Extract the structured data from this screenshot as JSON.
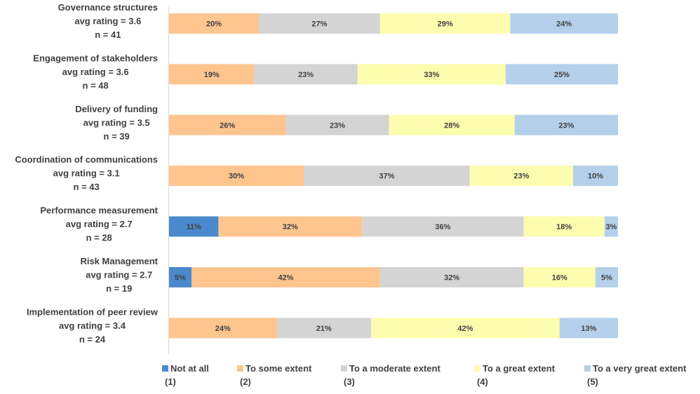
{
  "chart_data": {
    "type": "bar",
    "orientation": "horizontal",
    "stacked": true,
    "title": "",
    "xlabel": "",
    "ylabel": "",
    "xlim": [
      0,
      100
    ],
    "grid": false,
    "legend_position": "bottom",
    "categories": [
      {
        "name": "Governance structures",
        "avg": "avg rating = 3.6",
        "n": "n = 41"
      },
      {
        "name": "Engagement of stakeholders",
        "avg": "avg rating = 3.6",
        "n": "n = 48"
      },
      {
        "name": "Delivery of funding",
        "avg": "avg rating = 3.5",
        "n": "n = 39"
      },
      {
        "name": "Coordination of communications",
        "avg": "avg rating = 3.1",
        "n": "n = 43"
      },
      {
        "name": "Performance measurement",
        "avg": "avg rating = 2.7",
        "n": "n = 28"
      },
      {
        "name": "Risk Management",
        "avg": "avg rating = 2.7",
        "n": "n = 19"
      },
      {
        "name": "Implementation of peer review",
        "avg": "avg rating = 3.4",
        "n": "n = 24"
      }
    ],
    "series": [
      {
        "name": "Not at all",
        "code": "(1)",
        "color": "#4a89cd",
        "values": [
          0,
          0,
          0,
          0,
          11,
          5,
          0
        ]
      },
      {
        "name": "To some extent",
        "code": "(2)",
        "color": "#fec58f",
        "values": [
          20,
          19,
          26,
          30,
          32,
          42,
          24
        ]
      },
      {
        "name": "To a moderate extent",
        "code": "(3)",
        "color": "#d4d4d4",
        "values": [
          27,
          23,
          23,
          37,
          36,
          32,
          21
        ]
      },
      {
        "name": "To a great extent",
        "code": "(4)",
        "color": "#fdfdaf",
        "values": [
          29,
          33,
          28,
          23,
          18,
          16,
          42
        ]
      },
      {
        "name": "To a very great extent",
        "code": "(5)",
        "color": "#b4d0eb",
        "values": [
          24,
          25,
          23,
          10,
          3,
          5,
          13
        ]
      }
    ],
    "value_format": "{v}%"
  }
}
